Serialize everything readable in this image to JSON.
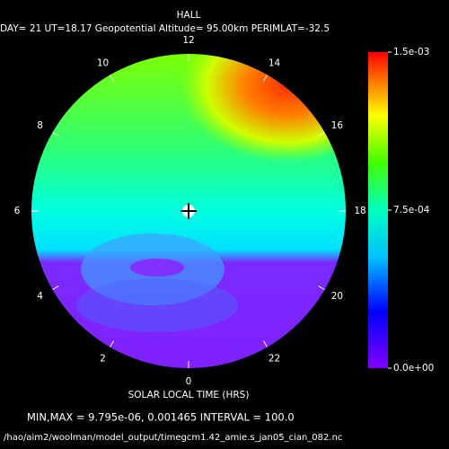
{
  "chart_data": {
    "type": "polar-field",
    "title": "HALL",
    "subtitle": "DAY= 21 UT=18.17 Geopotential Altitude= 95.00km PERIMLAT=-32.5",
    "xlabel": "SOLAR LOCAL TIME (HRS)",
    "lt_ticks": [
      12,
      14,
      16,
      18,
      20,
      22,
      0,
      2,
      4,
      6,
      8,
      10
    ],
    "clim": [
      0,
      0.0015
    ],
    "cticks": [
      {
        "value": 0.0015,
        "label": "1.5e-03"
      },
      {
        "value": 0.00075,
        "label": "7.5e-04"
      },
      {
        "value": 0,
        "label": "0.0e+00"
      }
    ],
    "footer": "MIN,MAX =  9.795e-06,  0.001465 INTERVAL =       100.0",
    "file": "/hao/aim2/woolman/model_output/timegcm1.42_amie.s_jan05_cian_082.nc"
  }
}
